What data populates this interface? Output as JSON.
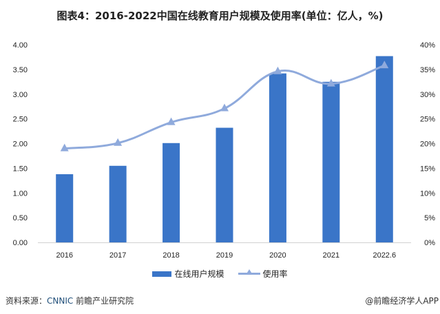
{
  "title": "图表4：2016-2022中国在线教育用户规模及使用率(单位：亿人，%)",
  "source_label": "资料来源：",
  "source_org": "CNNIC",
  "source_rest": " 前瞻产业研究院",
  "brand": "@前瞻经济学人APP",
  "colors": {
    "bar": "#3a75c8",
    "line": "#8faadc"
  },
  "chart_data": {
    "type": "bar+line",
    "categories": [
      "2016",
      "2017",
      "2018",
      "2019",
      "2020",
      "2021",
      "2022.6"
    ],
    "series": [
      {
        "name": "在线用户规模",
        "type": "bar",
        "axis": "left",
        "values": [
          1.38,
          1.55,
          2.01,
          2.32,
          3.42,
          3.25,
          3.77
        ]
      },
      {
        "name": "使用率",
        "type": "line",
        "axis": "right",
        "marker": "triangle",
        "values": [
          19.0,
          20.1,
          24.3,
          27.1,
          34.6,
          32.1,
          35.8
        ]
      }
    ],
    "y_left": {
      "range": [
        0,
        4
      ],
      "ticks": [
        "0.00",
        "0.50",
        "1.00",
        "1.50",
        "2.00",
        "2.50",
        "3.00",
        "3.50",
        "4.00"
      ]
    },
    "y_right": {
      "range": [
        0,
        40
      ],
      "ticks": [
        "0%",
        "5%",
        "10%",
        "15%",
        "20%",
        "25%",
        "30%",
        "35%",
        "40%"
      ]
    },
    "grid": false,
    "legend": "bottom"
  }
}
